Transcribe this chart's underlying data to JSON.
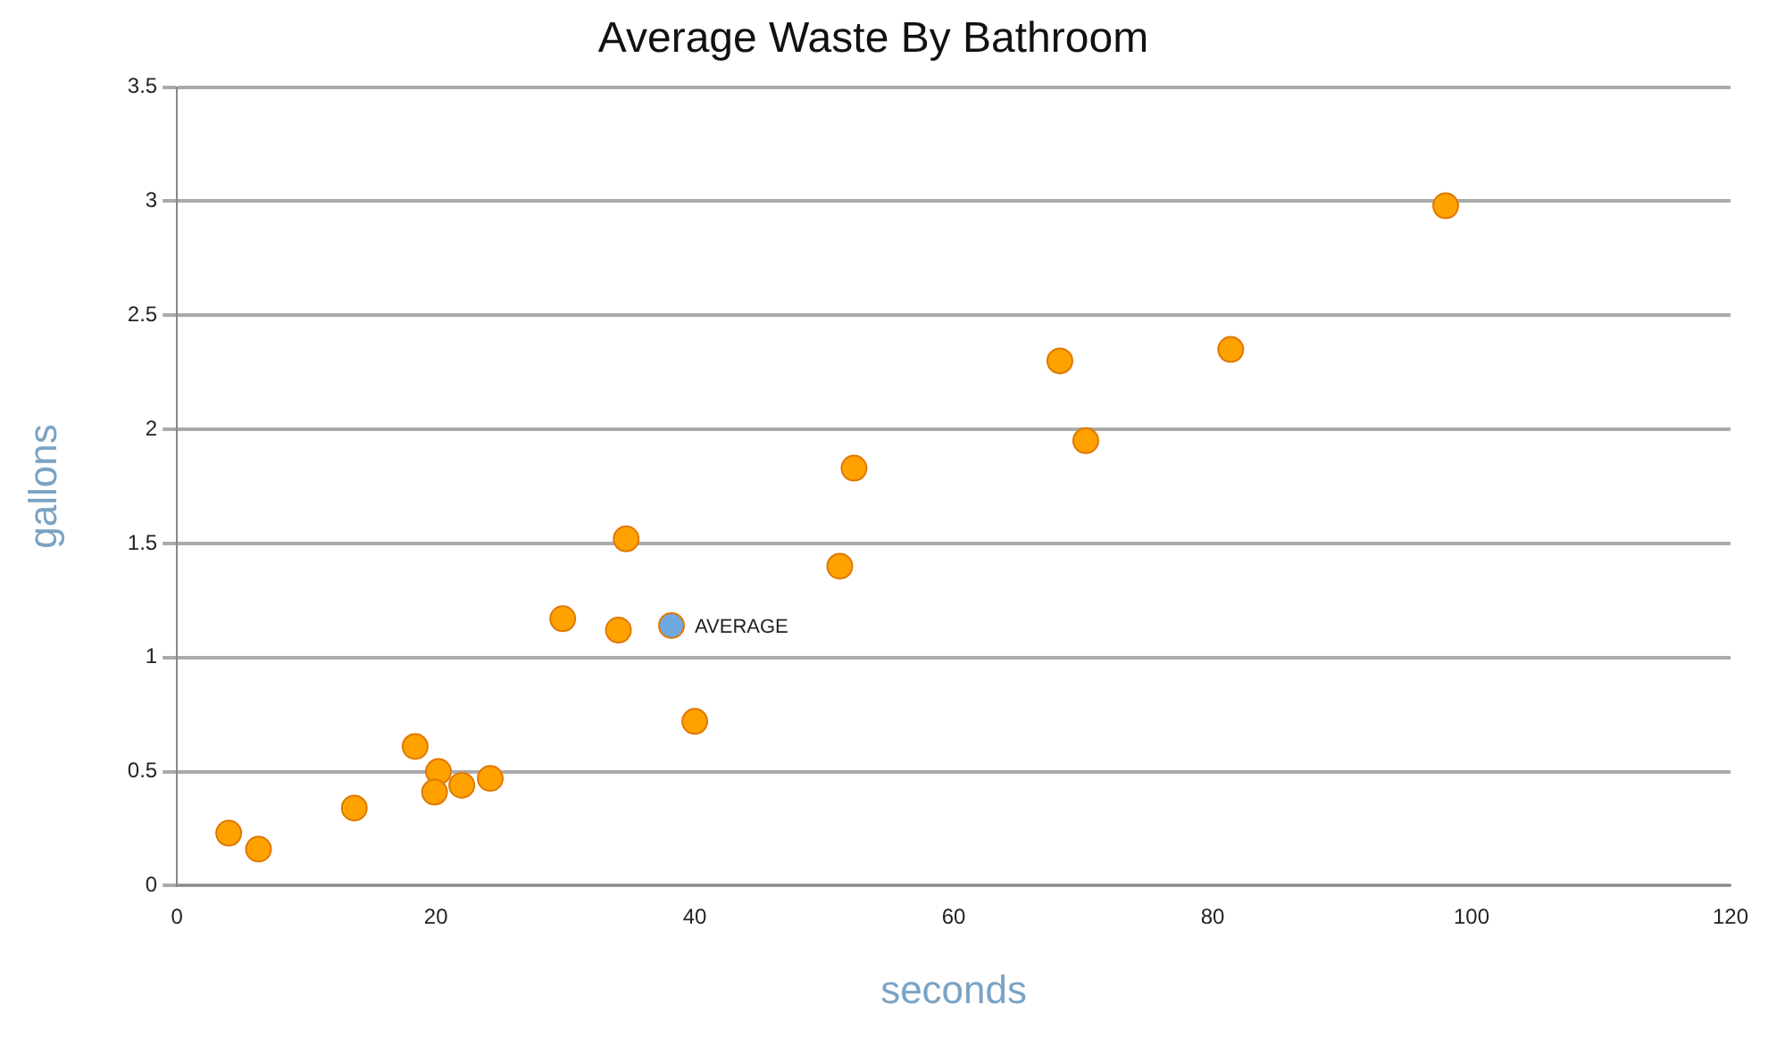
{
  "chart_data": {
    "type": "scatter",
    "title": "Average Waste By Bathroom",
    "xlabel": "seconds",
    "ylabel": "gallons",
    "series": [
      {
        "color": "#ffa200",
        "x": [
          4.0,
          6.3,
          13.7,
          18.4,
          20.2,
          19.9,
          22.0,
          24.2,
          29.8,
          34.1,
          34.7,
          40.0,
          51.2,
          52.3,
          68.2,
          70.2,
          81.4,
          98.0
        ],
        "values": [
          0.23,
          0.16,
          0.34,
          0.61,
          0.5,
          0.41,
          0.44,
          0.47,
          1.17,
          1.12,
          1.52,
          0.72,
          1.4,
          1.83,
          2.3,
          1.95,
          2.35,
          2.98
        ]
      },
      {
        "color": "#6fa8dc",
        "x": [
          38.2
        ],
        "values": [
          1.14
        ]
      }
    ],
    "annotations": [
      {
        "text": "AVERAGE",
        "x": 38.2,
        "y": 1.14
      }
    ],
    "xlim": [
      0,
      120
    ],
    "xticks": [
      0,
      20,
      40,
      60,
      80,
      100,
      120
    ],
    "ylim": [
      0,
      3.5
    ],
    "yticks": [
      0,
      0.5,
      1,
      1.5,
      2,
      2.5,
      3,
      3.5
    ],
    "grid": "y",
    "legend": false,
    "marker": "circle"
  }
}
